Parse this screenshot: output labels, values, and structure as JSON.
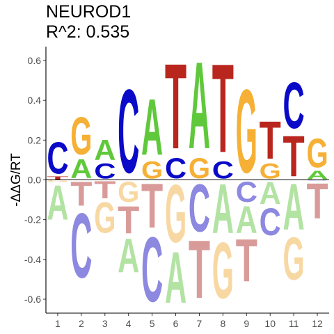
{
  "title": "NEUROD1",
  "subtitle": "R^2: 0.535",
  "chart_data": {
    "type": "sequence-logo",
    "ylabel": "-ΔΔG/RT",
    "ylim": [
      -0.67,
      0.67
    ],
    "yticks": [
      -0.6,
      -0.4,
      -0.2,
      0.0,
      0.2,
      0.4,
      0.6
    ],
    "ytick_labels": [
      "-0.6",
      "-0.4",
      "-0.2",
      "0.0",
      "0.2",
      "0.4",
      "0.6"
    ],
    "positions": [
      "1",
      "2",
      "3",
      "4",
      "5",
      "6",
      "7",
      "8",
      "9",
      "10",
      "11",
      "12"
    ],
    "colors": {
      "A": "#5fc83b",
      "C": "#0a0ac8",
      "G": "#f5b035",
      "T": "#b9261e"
    },
    "negative_colors": {
      "A": "#b2e3a3",
      "C": "#8d88e0",
      "G": "#f8d8a2",
      "T": "#d99b99"
    },
    "columns": [
      {
        "pos": 1,
        "pos_stack": [
          [
            "T",
            0.017
          ],
          [
            "C",
            0.203
          ]
        ],
        "neg_stack": [
          [
            "G",
            -0.012
          ],
          [
            "A",
            -0.215
          ]
        ]
      },
      {
        "pos": 2,
        "pos_stack": [
          [
            "A",
            0.11
          ],
          [
            "G",
            0.33
          ]
        ],
        "neg_stack": [
          [
            "T",
            -0.14
          ],
          [
            "C",
            -0.52
          ]
        ]
      },
      {
        "pos": 3,
        "pos_stack": [
          [
            "C",
            0.09
          ],
          [
            "A",
            0.21
          ]
        ],
        "neg_stack": [
          [
            "T",
            -0.1
          ],
          [
            "G",
            -0.28
          ]
        ]
      },
      {
        "pos": 4,
        "pos_stack": [
          [
            "C",
            0.49
          ]
        ],
        "neg_stack": [
          [
            "G",
            -0.12
          ],
          [
            "T",
            -0.28
          ],
          [
            "A",
            -0.48
          ]
        ]
      },
      {
        "pos": 5,
        "pos_stack": [
          [
            "G",
            0.1
          ],
          [
            "A",
            0.43
          ]
        ],
        "neg_stack": [
          [
            "T",
            -0.26
          ],
          [
            "C",
            -0.64
          ]
        ]
      },
      {
        "pos": 6,
        "pos_stack": [
          [
            "C",
            0.12
          ],
          [
            "T",
            0.62
          ]
        ],
        "neg_stack": [
          [
            "G",
            -0.34
          ],
          [
            "A",
            -0.64
          ]
        ]
      },
      {
        "pos": 7,
        "pos_stack": [
          [
            "G",
            0.12
          ],
          [
            "A",
            0.63
          ]
        ],
        "neg_stack": [
          [
            "C",
            -0.28
          ],
          [
            "T",
            -0.62
          ]
        ]
      },
      {
        "pos": 8,
        "pos_stack": [
          [
            "C",
            0.1
          ],
          [
            "T",
            0.62
          ]
        ],
        "neg_stack": [
          [
            "A",
            -0.29
          ],
          [
            "G",
            -0.62
          ]
        ]
      },
      {
        "pos": 9,
        "pos_stack": [
          [
            "G",
            0.49
          ]
        ],
        "neg_stack": [
          [
            "C",
            -0.12
          ],
          [
            "A",
            -0.28
          ],
          [
            "T",
            -0.53
          ]
        ]
      },
      {
        "pos": 10,
        "pos_stack": [
          [
            "G",
            0.09
          ],
          [
            "T",
            0.31
          ]
        ],
        "neg_stack": [
          [
            "A",
            -0.13
          ],
          [
            "C",
            -0.29
          ]
        ]
      },
      {
        "pos": 11,
        "pos_stack": [
          [
            "T",
            0.24
          ],
          [
            "C",
            0.51
          ]
        ],
        "neg_stack": [
          [
            "A",
            -0.27
          ],
          [
            "G",
            -0.52
          ]
        ]
      },
      {
        "pos": 12,
        "pos_stack": [
          [
            "A",
            0.05
          ],
          [
            "G",
            0.22
          ]
        ],
        "neg_stack": [
          [
            "C",
            -0.004
          ],
          [
            "T",
            -0.21
          ]
        ]
      }
    ]
  }
}
